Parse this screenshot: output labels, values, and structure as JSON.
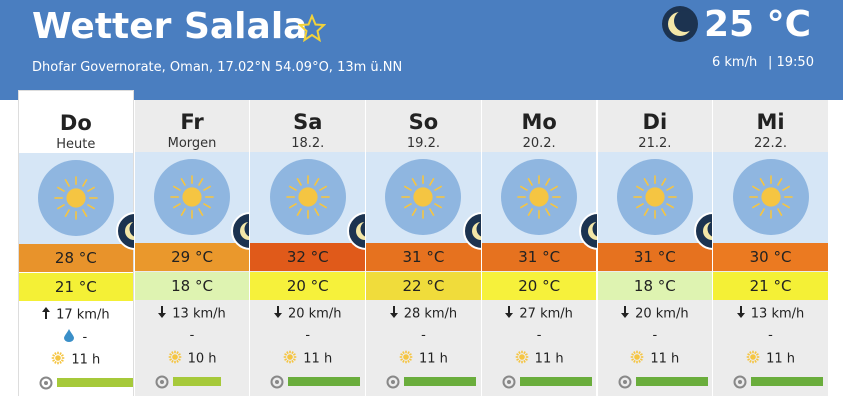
{
  "header": {
    "title": "Wetter Salala",
    "location": "Dhofar Governorate, Oman, 17.02°N 54.09°O, 13m ü.NN",
    "current": {
      "temperature": "25 °C",
      "wind": "6 km/h",
      "time": "| 19:50"
    }
  },
  "days": [
    {
      "name": "Do",
      "date": "Heute",
      "high": "28 °C",
      "high_color": "#e8932b",
      "low": "21 °C",
      "low_color": "#f4f036",
      "wind": "17 km/h",
      "precipitation": "-",
      "sunshine": "11 h"
    },
    {
      "name": "Fr",
      "date": "Morgen",
      "high": "29 °C",
      "high_color": "#ea982c",
      "low": "18 °C",
      "low_color": "#def3b1",
      "wind": "13 km/h",
      "precipitation": "-",
      "sunshine": "10 h"
    },
    {
      "name": "Sa",
      "date": "18.2.",
      "high": "32 °C",
      "high_color": "#e05a1a",
      "low": "20 °C",
      "low_color": "#f6f13b",
      "wind": "20 km/h",
      "precipitation": "-",
      "sunshine": "11 h"
    },
    {
      "name": "So",
      "date": "19.2.",
      "high": "31 °C",
      "high_color": "#e6721f",
      "low": "22 °C",
      "low_color": "#f0dc3b",
      "wind": "28 km/h",
      "precipitation": "-",
      "sunshine": "11 h"
    },
    {
      "name": "Mo",
      "date": "20.2.",
      "high": "31 °C",
      "high_color": "#e6721f",
      "low": "20 °C",
      "low_color": "#f6f13b",
      "wind": "27 km/h",
      "precipitation": "-",
      "sunshine": "11 h"
    },
    {
      "name": "Di",
      "date": "21.2.",
      "high": "31 °C",
      "high_color": "#e6721f",
      "low": "18 °C",
      "low_color": "#def3b1",
      "wind": "20 km/h",
      "precipitation": "-",
      "sunshine": "11 h"
    },
    {
      "name": "Mi",
      "date": "22.2.",
      "high": "30 °C",
      "high_color": "#eb7a21",
      "low": "21 °C",
      "low_color": "#f4f036",
      "wind": "13 km/h",
      "precipitation": "-",
      "sunshine": "11 h"
    }
  ]
}
